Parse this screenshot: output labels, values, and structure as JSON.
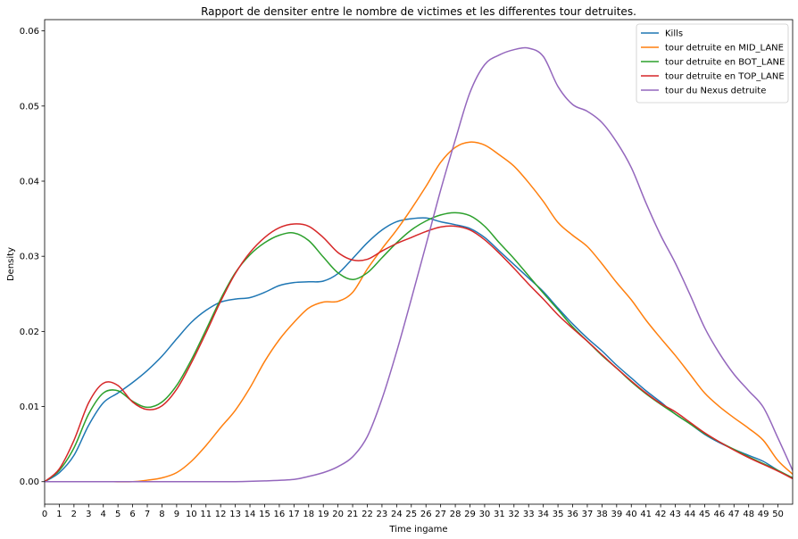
{
  "chart_data": {
    "type": "line",
    "title": "Rapport de densiter entre le nombre de victimes et les differentes tour detruites.",
    "xlabel": "Time ingame",
    "ylabel": "Density",
    "xlim": [
      0,
      51
    ],
    "ylim": [
      -0.003,
      0.0615
    ],
    "x_ticks": [
      0,
      1,
      2,
      3,
      4,
      5,
      6,
      7,
      8,
      9,
      10,
      11,
      12,
      13,
      14,
      15,
      16,
      17,
      18,
      19,
      20,
      21,
      22,
      23,
      24,
      25,
      26,
      27,
      28,
      29,
      30,
      31,
      32,
      33,
      34,
      35,
      36,
      37,
      38,
      39,
      40,
      41,
      42,
      43,
      44,
      45,
      46,
      47,
      48,
      49,
      50
    ],
    "y_ticks": [
      0.0,
      0.01,
      0.02,
      0.03,
      0.04,
      0.05,
      0.06
    ],
    "y_tick_labels": [
      "0.00",
      "0.01",
      "0.02",
      "0.03",
      "0.04",
      "0.05",
      "0.06"
    ],
    "grid": false,
    "legend_position": "top-right",
    "series": [
      {
        "name": "Kills",
        "color": "#1f77b4",
        "points": [
          [
            0,
            0.0
          ],
          [
            1,
            0.0012
          ],
          [
            2,
            0.0035
          ],
          [
            3,
            0.0075
          ],
          [
            4,
            0.0105
          ],
          [
            5,
            0.0118
          ],
          [
            6,
            0.0132
          ],
          [
            7,
            0.0148
          ],
          [
            8,
            0.0167
          ],
          [
            9,
            0.019
          ],
          [
            10,
            0.0212
          ],
          [
            11,
            0.0228
          ],
          [
            12,
            0.0239
          ],
          [
            13,
            0.0243
          ],
          [
            14,
            0.0245
          ],
          [
            15,
            0.0252
          ],
          [
            16,
            0.0261
          ],
          [
            17,
            0.0265
          ],
          [
            18,
            0.0266
          ],
          [
            19,
            0.0267
          ],
          [
            20,
            0.0277
          ],
          [
            21,
            0.0297
          ],
          [
            22,
            0.0318
          ],
          [
            23,
            0.0335
          ],
          [
            24,
            0.0346
          ],
          [
            25,
            0.035
          ],
          [
            26,
            0.0351
          ],
          [
            27,
            0.0346
          ],
          [
            28,
            0.0342
          ],
          [
            29,
            0.0337
          ],
          [
            30,
            0.0325
          ],
          [
            31,
            0.0307
          ],
          [
            32,
            0.0289
          ],
          [
            33,
            0.0271
          ],
          [
            34,
            0.0253
          ],
          [
            35,
            0.0231
          ],
          [
            36,
            0.021
          ],
          [
            37,
            0.0191
          ],
          [
            38,
            0.0174
          ],
          [
            39,
            0.0155
          ],
          [
            40,
            0.0138
          ],
          [
            41,
            0.0121
          ],
          [
            42,
            0.0106
          ],
          [
            43,
            0.009
          ],
          [
            44,
            0.0077
          ],
          [
            45,
            0.0063
          ],
          [
            46,
            0.0052
          ],
          [
            47,
            0.0043
          ],
          [
            48,
            0.0035
          ],
          [
            49,
            0.0027
          ],
          [
            50,
            0.0015
          ],
          [
            51,
            0.0005
          ]
        ]
      },
      {
        "name": "tour detruite en MID_LANE",
        "color": "#ff7f0e",
        "points": [
          [
            0,
            0.0
          ],
          [
            4,
            0.0
          ],
          [
            6,
            0.0
          ],
          [
            7,
            0.0002
          ],
          [
            8,
            0.0005
          ],
          [
            9,
            0.0012
          ],
          [
            10,
            0.0027
          ],
          [
            11,
            0.0048
          ],
          [
            12,
            0.0072
          ],
          [
            13,
            0.0095
          ],
          [
            14,
            0.0125
          ],
          [
            15,
            0.016
          ],
          [
            16,
            0.0189
          ],
          [
            17,
            0.0212
          ],
          [
            18,
            0.0231
          ],
          [
            19,
            0.0239
          ],
          [
            20,
            0.024
          ],
          [
            21,
            0.0252
          ],
          [
            22,
            0.0283
          ],
          [
            23,
            0.031
          ],
          [
            24,
            0.0335
          ],
          [
            25,
            0.0363
          ],
          [
            26,
            0.0393
          ],
          [
            27,
            0.0425
          ],
          [
            28,
            0.0445
          ],
          [
            29,
            0.0452
          ],
          [
            30,
            0.0448
          ],
          [
            31,
            0.0435
          ],
          [
            32,
            0.042
          ],
          [
            33,
            0.0398
          ],
          [
            34,
            0.0373
          ],
          [
            35,
            0.0345
          ],
          [
            36,
            0.0328
          ],
          [
            37,
            0.0313
          ],
          [
            38,
            0.029
          ],
          [
            39,
            0.0265
          ],
          [
            40,
            0.0242
          ],
          [
            41,
            0.0215
          ],
          [
            42,
            0.0191
          ],
          [
            43,
            0.0168
          ],
          [
            44,
            0.0143
          ],
          [
            45,
            0.0118
          ],
          [
            46,
            0.01
          ],
          [
            47,
            0.0085
          ],
          [
            48,
            0.0071
          ],
          [
            49,
            0.0055
          ],
          [
            50,
            0.0028
          ],
          [
            51,
            0.001
          ]
        ]
      },
      {
        "name": "tour detruite en BOT_LANE",
        "color": "#2ca02c",
        "points": [
          [
            0,
            0.0
          ],
          [
            1,
            0.0015
          ],
          [
            2,
            0.0045
          ],
          [
            3,
            0.009
          ],
          [
            4,
            0.0118
          ],
          [
            5,
            0.0121
          ],
          [
            6,
            0.0107
          ],
          [
            7,
            0.0099
          ],
          [
            8,
            0.0106
          ],
          [
            9,
            0.0128
          ],
          [
            10,
            0.0162
          ],
          [
            11,
            0.0202
          ],
          [
            12,
            0.0243
          ],
          [
            13,
            0.0278
          ],
          [
            14,
            0.0302
          ],
          [
            15,
            0.0318
          ],
          [
            16,
            0.0328
          ],
          [
            17,
            0.0331
          ],
          [
            18,
            0.0321
          ],
          [
            19,
            0.0299
          ],
          [
            20,
            0.0278
          ],
          [
            21,
            0.0269
          ],
          [
            22,
            0.0278
          ],
          [
            23,
            0.0298
          ],
          [
            24,
            0.0318
          ],
          [
            25,
            0.0335
          ],
          [
            26,
            0.0347
          ],
          [
            27,
            0.0355
          ],
          [
            28,
            0.0358
          ],
          [
            29,
            0.0354
          ],
          [
            30,
            0.034
          ],
          [
            31,
            0.0318
          ],
          [
            32,
            0.0297
          ],
          [
            33,
            0.0274
          ],
          [
            34,
            0.0251
          ],
          [
            35,
            0.0229
          ],
          [
            36,
            0.0206
          ],
          [
            37,
            0.0187
          ],
          [
            38,
            0.0168
          ],
          [
            39,
            0.0151
          ],
          [
            40,
            0.0133
          ],
          [
            41,
            0.0117
          ],
          [
            42,
            0.0103
          ],
          [
            43,
            0.009
          ],
          [
            44,
            0.0077
          ],
          [
            45,
            0.0064
          ],
          [
            46,
            0.0053
          ],
          [
            47,
            0.0043
          ],
          [
            48,
            0.0033
          ],
          [
            49,
            0.0024
          ],
          [
            50,
            0.0015
          ],
          [
            51,
            0.0005
          ]
        ]
      },
      {
        "name": "tour detruite en TOP_LANE",
        "color": "#d62728",
        "points": [
          [
            0,
            0.0
          ],
          [
            1,
            0.0017
          ],
          [
            2,
            0.0055
          ],
          [
            3,
            0.0105
          ],
          [
            4,
            0.0131
          ],
          [
            5,
            0.0128
          ],
          [
            6,
            0.0106
          ],
          [
            7,
            0.0096
          ],
          [
            8,
            0.0101
          ],
          [
            9,
            0.0123
          ],
          [
            10,
            0.0158
          ],
          [
            11,
            0.0198
          ],
          [
            12,
            0.024
          ],
          [
            13,
            0.0277
          ],
          [
            14,
            0.0305
          ],
          [
            15,
            0.0325
          ],
          [
            16,
            0.0338
          ],
          [
            17,
            0.0343
          ],
          [
            18,
            0.034
          ],
          [
            19,
            0.0325
          ],
          [
            20,
            0.0305
          ],
          [
            21,
            0.0295
          ],
          [
            22,
            0.0296
          ],
          [
            23,
            0.0307
          ],
          [
            24,
            0.0317
          ],
          [
            25,
            0.0325
          ],
          [
            26,
            0.0333
          ],
          [
            27,
            0.0339
          ],
          [
            28,
            0.034
          ],
          [
            29,
            0.0335
          ],
          [
            30,
            0.0322
          ],
          [
            31,
            0.0304
          ],
          [
            32,
            0.0284
          ],
          [
            33,
            0.0263
          ],
          [
            34,
            0.0243
          ],
          [
            35,
            0.0222
          ],
          [
            36,
            0.0204
          ],
          [
            37,
            0.0187
          ],
          [
            38,
            0.0169
          ],
          [
            39,
            0.0151
          ],
          [
            40,
            0.0134
          ],
          [
            41,
            0.0118
          ],
          [
            42,
            0.0104
          ],
          [
            43,
            0.0093
          ],
          [
            44,
            0.0079
          ],
          [
            45,
            0.0065
          ],
          [
            46,
            0.0053
          ],
          [
            47,
            0.0042
          ],
          [
            48,
            0.0032
          ],
          [
            49,
            0.0023
          ],
          [
            50,
            0.0014
          ],
          [
            51,
            0.0004
          ]
        ]
      },
      {
        "name": "tour du Nexus detruite",
        "color": "#9467bd",
        "points": [
          [
            0,
            0.0
          ],
          [
            5,
            0.0
          ],
          [
            10,
            0.0
          ],
          [
            13,
            0.0
          ],
          [
            15,
            0.0001
          ],
          [
            17,
            0.0003
          ],
          [
            18,
            0.0007
          ],
          [
            19,
            0.0012
          ],
          [
            20,
            0.002
          ],
          [
            21,
            0.0033
          ],
          [
            22,
            0.006
          ],
          [
            23,
            0.011
          ],
          [
            24,
            0.0173
          ],
          [
            25,
            0.0243
          ],
          [
            26,
            0.0315
          ],
          [
            27,
            0.0388
          ],
          [
            28,
            0.0455
          ],
          [
            29,
            0.0518
          ],
          [
            30,
            0.0555
          ],
          [
            31,
            0.0568
          ],
          [
            32,
            0.0575
          ],
          [
            33,
            0.0577
          ],
          [
            34,
            0.0566
          ],
          [
            35,
            0.0526
          ],
          [
            36,
            0.0502
          ],
          [
            37,
            0.0493
          ],
          [
            38,
            0.0478
          ],
          [
            39,
            0.0452
          ],
          [
            40,
            0.0418
          ],
          [
            41,
            0.0371
          ],
          [
            42,
            0.0328
          ],
          [
            43,
            0.0291
          ],
          [
            44,
            0.0249
          ],
          [
            45,
            0.0205
          ],
          [
            46,
            0.0171
          ],
          [
            47,
            0.0143
          ],
          [
            48,
            0.0121
          ],
          [
            49,
            0.0099
          ],
          [
            50,
            0.0058
          ],
          [
            51,
            0.0015
          ]
        ]
      }
    ]
  }
}
